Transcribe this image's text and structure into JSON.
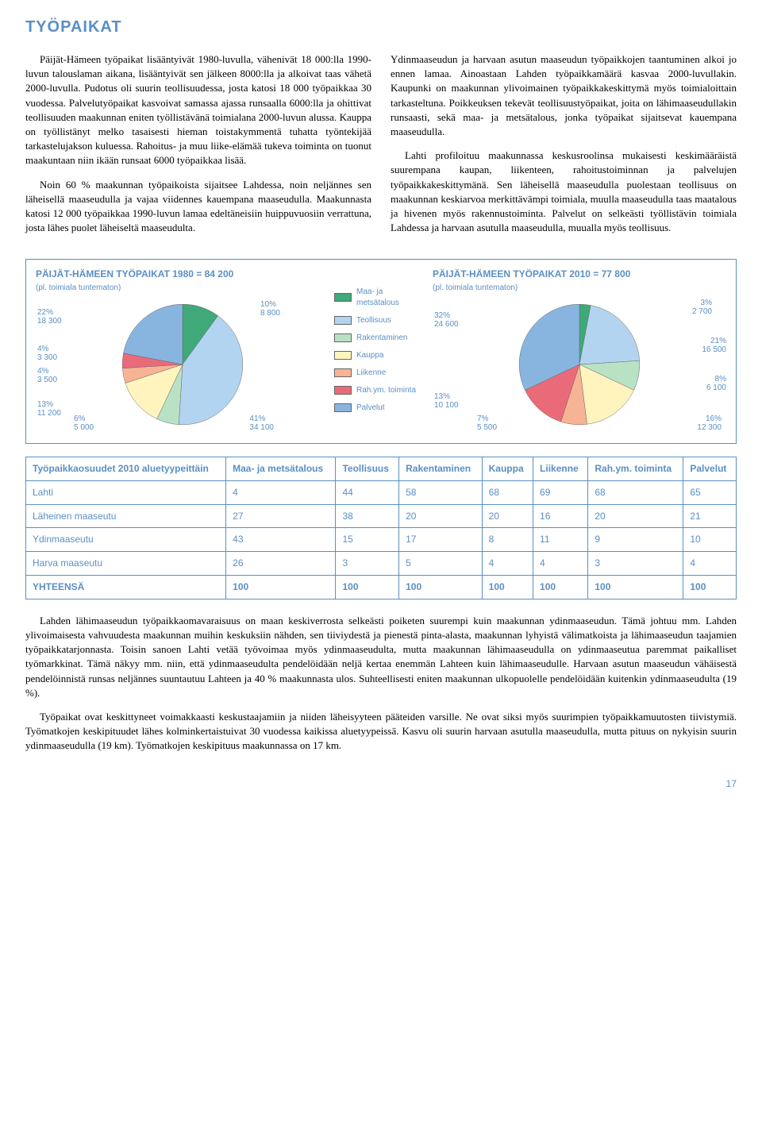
{
  "title": "TYÖPAIKAT",
  "body": {
    "left": [
      "Päijät-Hämeen työpaikat lisääntyivät 1980-luvulla, vähenivät 18 000:lla 1990-luvun talouslaman aikana, lisääntyivät sen jälkeen 8000:lla ja alkoivat taas vähetä 2000-luvulla. Pudotus oli suurin teollisuudessa, josta katosi 18 000 työpaikkaa 30 vuodessa. Palvelutyöpaikat kasvoivat samassa ajassa runsaalla 6000:lla ja ohittivat teollisuuden maakunnan eniten työllistävänä toimialana 2000-luvun alussa. Kauppa on työllistänyt melko tasaisesti hieman toistakymmentä tuhatta työntekijää tarkastelujakson kuluessa. Rahoitus- ja muu liike-elämää tukeva toiminta on tuonut maakuntaan niin ikään runsaat 6000 työpaikkaa lisää.",
      "Noin 60 % maakunnan työpaikoista sijaitsee Lahdessa, noin neljännes sen läheisellä maaseudulla ja vajaa viidennes kauempana maaseudulla. Maakunnasta katosi 12 000 työpaikkaa 1990-luvun lamaa edeltäneisiin huippuvuosiin verrattuna, josta lähes puolet läheiseltä maaseudulta."
    ],
    "right": [
      "Ydinmaaseudun ja harvaan asutun maaseudun työpaikkojen taantuminen alkoi jo ennen lamaa. Ainoastaan Lahden työpaikkamäärä kasvaa 2000-luvullakin. Kaupunki on maakunnan ylivoimainen työpaikkakeskittymä myös toimialoittain tarkasteltuna. Poikkeuksen tekevät teollisuustyöpaikat, joita on lähimaaseudullakin runsaasti, sekä maa- ja metsätalous, jonka työpaikat sijaitsevat kauempana maaseudulla.",
      "Lahti profiloituu maakunnassa keskusroolinsa mukaisesti keskimääräistä suurempana kaupan, liikenteen, rahoitustoiminnan ja palvelujen työpaikkakeskittymänä. Sen läheisellä maaseudulla puolestaan teollisuus on maakunnan keskiarvoa merkittävämpi toimiala, muulla maaseudulla taas maatalous ja hivenen myös rakennustoiminta. Palvelut on selkeästi työllistävin toimiala Lahdessa ja harvaan asutulla maaseudulla, muualla myös teollisuus."
    ]
  },
  "legend": {
    "items": [
      "Maa- ja metsätalous",
      "Teollisuus",
      "Rakentaminen",
      "Kauppa",
      "Liikenne",
      "Rah.ym. toiminta",
      "Palvelut"
    ],
    "colors": [
      "#3fa97a",
      "#b3d4f0",
      "#b9e2c5",
      "#fff4bd",
      "#f7b494",
      "#e96b7a",
      "#88b5df"
    ]
  },
  "chart1980": {
    "title": "PÄIJÄT-HÄMEEN TYÖPAIKAT 1980 = 84 200",
    "sub": "(pl. toimiala tuntematon)",
    "type": "pie",
    "slices": [
      {
        "label": "10%",
        "value_abs": "8 800",
        "pct": 10,
        "color": "#3fa97a"
      },
      {
        "label": "41%",
        "value_abs": "34 100",
        "pct": 41,
        "color": "#b3d4f0"
      },
      {
        "label": "6%",
        "value_abs": "5 000",
        "pct": 6,
        "color": "#b9e2c5"
      },
      {
        "label": "13%",
        "value_abs": "11 200",
        "pct": 13,
        "color": "#fff4bd"
      },
      {
        "label": "4%",
        "value_abs": "3 500",
        "pct": 4,
        "color": "#f7b494"
      },
      {
        "label": "4%",
        "value_abs": "3 300",
        "pct": 4,
        "color": "#e96b7a"
      },
      {
        "label": "22%",
        "value_abs": "18 300",
        "pct": 22,
        "color": "#88b5df"
      }
    ]
  },
  "chart2010": {
    "title": "PÄIJÄT-HÄMEEN TYÖPAIKAT 2010 = 77 800",
    "sub": "(pl. toimiala tuntematon)",
    "type": "pie",
    "slices": [
      {
        "label": "3%",
        "value_abs": "2 700",
        "pct": 3,
        "color": "#3fa97a"
      },
      {
        "label": "21%",
        "value_abs": "16 500",
        "pct": 21,
        "color": "#b3d4f0"
      },
      {
        "label": "8%",
        "value_abs": "6 100",
        "pct": 8,
        "color": "#b9e2c5"
      },
      {
        "label": "16%",
        "value_abs": "12 300",
        "pct": 16,
        "color": "#fff4bd"
      },
      {
        "label": "7%",
        "value_abs": "5 500",
        "pct": 7,
        "color": "#f7b494"
      },
      {
        "label": "13%",
        "value_abs": "10 100",
        "pct": 13,
        "color": "#e96b7a"
      },
      {
        "label": "32%",
        "value_abs": "24 600",
        "pct": 32,
        "color": "#88b5df"
      }
    ]
  },
  "table": {
    "header_row_label": "Työpaikkaosuudet 2010 aluetyypeittäin",
    "columns": [
      "Maa- ja metsätalous",
      "Teollisuus",
      "Rakentaminen",
      "Kauppa",
      "Liikenne",
      "Rah.ym. toiminta",
      "Palvelut"
    ],
    "rows": [
      {
        "name": "Lahti",
        "cells": [
          "4",
          "44",
          "58",
          "68",
          "69",
          "68",
          "65"
        ]
      },
      {
        "name": "Läheinen maaseutu",
        "cells": [
          "27",
          "38",
          "20",
          "20",
          "16",
          "20",
          "21"
        ]
      },
      {
        "name": "Ydinmaaseutu",
        "cells": [
          "43",
          "15",
          "17",
          "8",
          "11",
          "9",
          "10"
        ]
      },
      {
        "name": "Harva maaseutu",
        "cells": [
          "26",
          "3",
          "5",
          "4",
          "4",
          "3",
          "4"
        ]
      }
    ],
    "total_label": "YHTEENSÄ",
    "total_cells": [
      "100",
      "100",
      "100",
      "100",
      "100",
      "100",
      "100"
    ]
  },
  "footer": [
    "Lahden lähimaaseudun työpaikkaomavaraisuus on maan keskiverrosta selkeästi poiketen suurempi kuin maakunnan ydinmaaseudun. Tämä johtuu mm. Lahden ylivoimaisesta vahvuudesta maakunnan muihin keskuksiin nähden, sen tiiviydestä ja pienestä pinta-alasta, maakunnan lyhyistä välimatkoista ja lähimaaseudun taajamien työpaikkatarjonnasta. Toisin sanoen Lahti vetää työvoimaa myös ydinmaaseudulta, mutta maakunnan lähimaaseudulla on ydinmaaseutua paremmat paikalliset työmarkkinat. Tämä näkyy mm. niin, että ydinmaaseudulta pendelöidään neljä kertaa enemmän Lahteen kuin lähimaaseudulle. Harvaan asutun maaseudun vähäisestä pendelöinnistä runsas neljännes suuntautuu Lahteen ja 40 % maakunnasta ulos. Suhteellisesti eniten maakunnan ulkopuolelle pendelöidään kuitenkin ydinmaaseudulta (19 %).",
    "Työpaikat ovat keskittyneet voimakkaasti keskustaajamiin ja niiden läheisyyteen pääteiden varsille. Ne ovat siksi myös suurimpien työpaikkamuutosten tiivistymiä. Työmatkojen keskipituudet lähes kolminkertaistuivat 30 vuodessa kaikissa aluetyypeissä. Kasvu oli suurin harvaan asutulla maaseudulla, mutta pituus on nykyisin suurin ydinmaaseudulla (19 km). Työmatkojen keskipituus maakunnassa on 17 km."
  ],
  "page_number": "17"
}
